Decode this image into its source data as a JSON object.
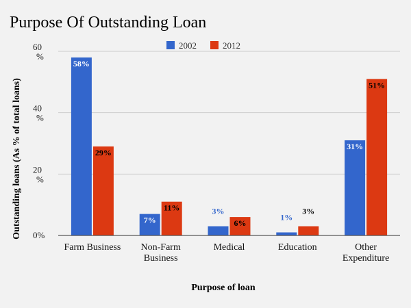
{
  "chart_data": {
    "type": "bar",
    "title": "Purpose Of Outstanding Loan",
    "xlabel": "Purpose of loan",
    "ylabel": "Outstanding loans (As % of total loans)",
    "ylim": [
      0,
      60
    ],
    "yticks": [
      {
        "value": 0,
        "label": "0%"
      },
      {
        "value": 20,
        "label": "20\n%"
      },
      {
        "value": 40,
        "label": "40\n%"
      },
      {
        "value": 60,
        "label": "60\n%"
      }
    ],
    "categories": [
      "Farm Business",
      "Non-Farm\nBusiness",
      "Medical",
      "Education",
      "Other\nExpenditure"
    ],
    "series": [
      {
        "name": "2002",
        "color": "#3366cc",
        "values": [
          58,
          7,
          3,
          1,
          31
        ],
        "labels": [
          "58%",
          "7%",
          "3%",
          "1%",
          "31%"
        ]
      },
      {
        "name": "2012",
        "color": "#dc3912",
        "values": [
          29,
          11,
          6,
          3,
          51
        ],
        "labels": [
          "29%",
          "11%",
          "6%",
          "3%",
          "51%"
        ]
      }
    ],
    "legend_position": "top-center",
    "grid": true
  }
}
